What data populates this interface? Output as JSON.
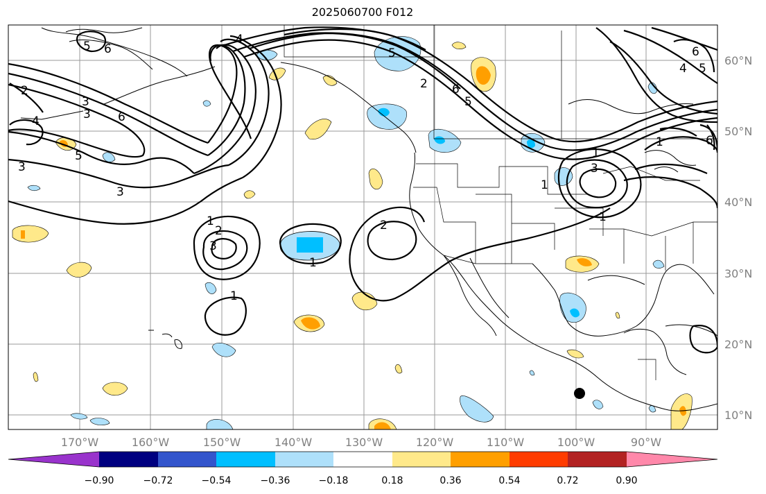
{
  "title": "2025060700 F012",
  "map": {
    "latitude_labels": [
      "60°N",
      "50°N",
      "40°N",
      "30°N",
      "20°N",
      "10°N"
    ],
    "longitude_labels": [
      "170°W",
      "160°W",
      "150°W",
      "140°W",
      "130°W",
      "120°W",
      "110°W",
      "100°W",
      "90°W"
    ],
    "contour_labels": [
      "1",
      "2",
      "3",
      "4",
      "5",
      "6"
    ],
    "station_marker": "black-dot"
  },
  "colorbar": {
    "tick_labels": [
      "−0.90",
      "−0.72",
      "−0.54",
      "−0.36",
      "−0.18",
      "0.18",
      "0.36",
      "0.54",
      "0.72",
      "0.90"
    ],
    "colors": [
      "#9933cc",
      "#000080",
      "#3355cc",
      "#00bfff",
      "#aee0fa",
      "#ffffff",
      "#ffe98a",
      "#ff9f00",
      "#ff3c00",
      "#b22222",
      "#ff88aa"
    ],
    "extend": "both"
  },
  "colors": {
    "grid": "#999999",
    "contour": "#000000",
    "tick_label": "#808080"
  }
}
